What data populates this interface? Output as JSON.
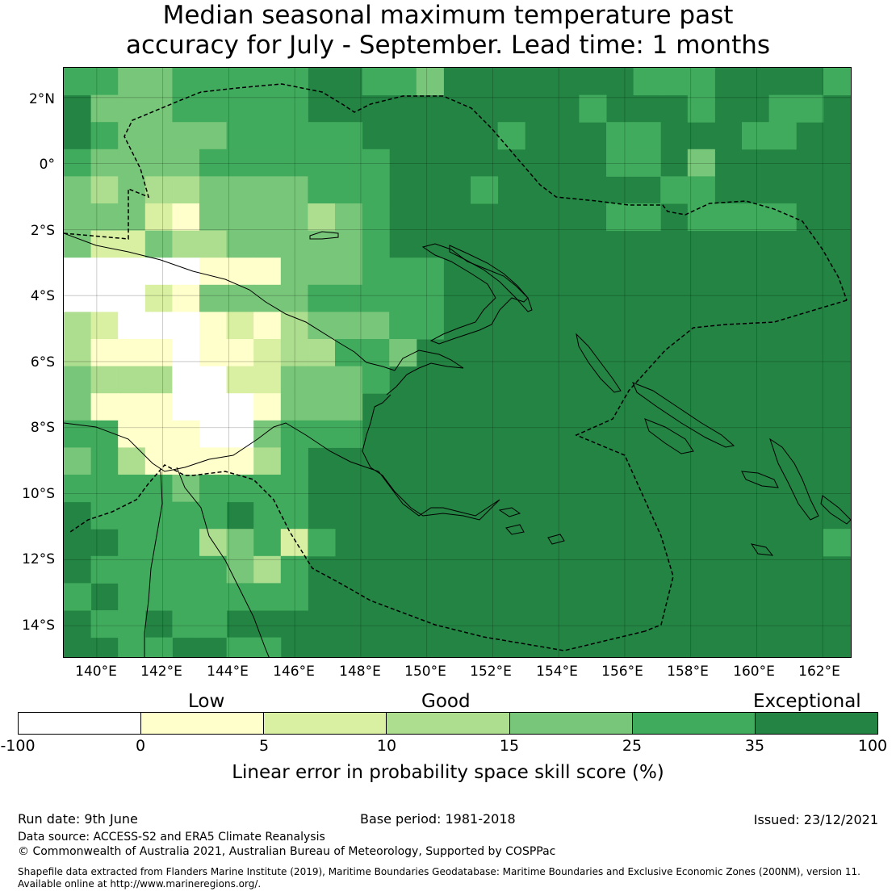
{
  "title": {
    "line1": "Median seasonal maximum temperature past",
    "line2": "accuracy for July - September. Lead time: 1 months"
  },
  "map": {
    "lat_labels": [
      "2°N",
      "0°",
      "2°S",
      "4°S",
      "6°S",
      "8°S",
      "10°S",
      "12°S",
      "14°S"
    ],
    "lon_labels": [
      "140°E",
      "142°E",
      "144°E",
      "146°E",
      "148°E",
      "150°E",
      "152°E",
      "154°E",
      "156°E",
      "158°E",
      "160°E",
      "162°E"
    ],
    "extent": {
      "lon_min": 139.0,
      "lon_max": 162.9,
      "lat_min": -15.0,
      "lat_max": 2.9
    },
    "boundary_style": "dashed",
    "gridlines": true
  },
  "colorbar": {
    "categories": [
      "Low",
      "Good",
      "Exceptional"
    ],
    "bins": [
      {
        "from": -100,
        "to": 0,
        "color": "#ffffff"
      },
      {
        "from": 0,
        "to": 5,
        "color": "#ffffcc"
      },
      {
        "from": 5,
        "to": 10,
        "color": "#d9f0a3"
      },
      {
        "from": 10,
        "to": 15,
        "color": "#addd8e"
      },
      {
        "from": 15,
        "to": 25,
        "color": "#78c679"
      },
      {
        "from": 25,
        "to": 35,
        "color": "#41ab5d"
      },
      {
        "from": 35,
        "to": 100,
        "color": "#238443"
      }
    ],
    "ticks": [
      "-100",
      "0",
      "5",
      "10",
      "15",
      "25",
      "35",
      "100"
    ],
    "label": "Linear error in probability space skill score (%)"
  },
  "footer": {
    "run_date": "Run date: 9th June",
    "base_period": "Base period: 1981-2018",
    "issued": "Issued: 23/12/2021",
    "data_source": "Data source: ACCESS-S2 and ERA5 Climate Reanalysis",
    "copyright": "© Commonwealth of Australia 2021, Australian Bureau of Meteorology, Supported by COSPPac",
    "shapefile_line1": "Shapefile data extracted from Flanders Marine Institute (2019), Maritime Boundaries Geodatabase: Maritime Boundaries and Exclusive Economic Zones (200NM), version 11.",
    "shapefile_line2": "Available online at http://www.marineregions.org/."
  }
}
